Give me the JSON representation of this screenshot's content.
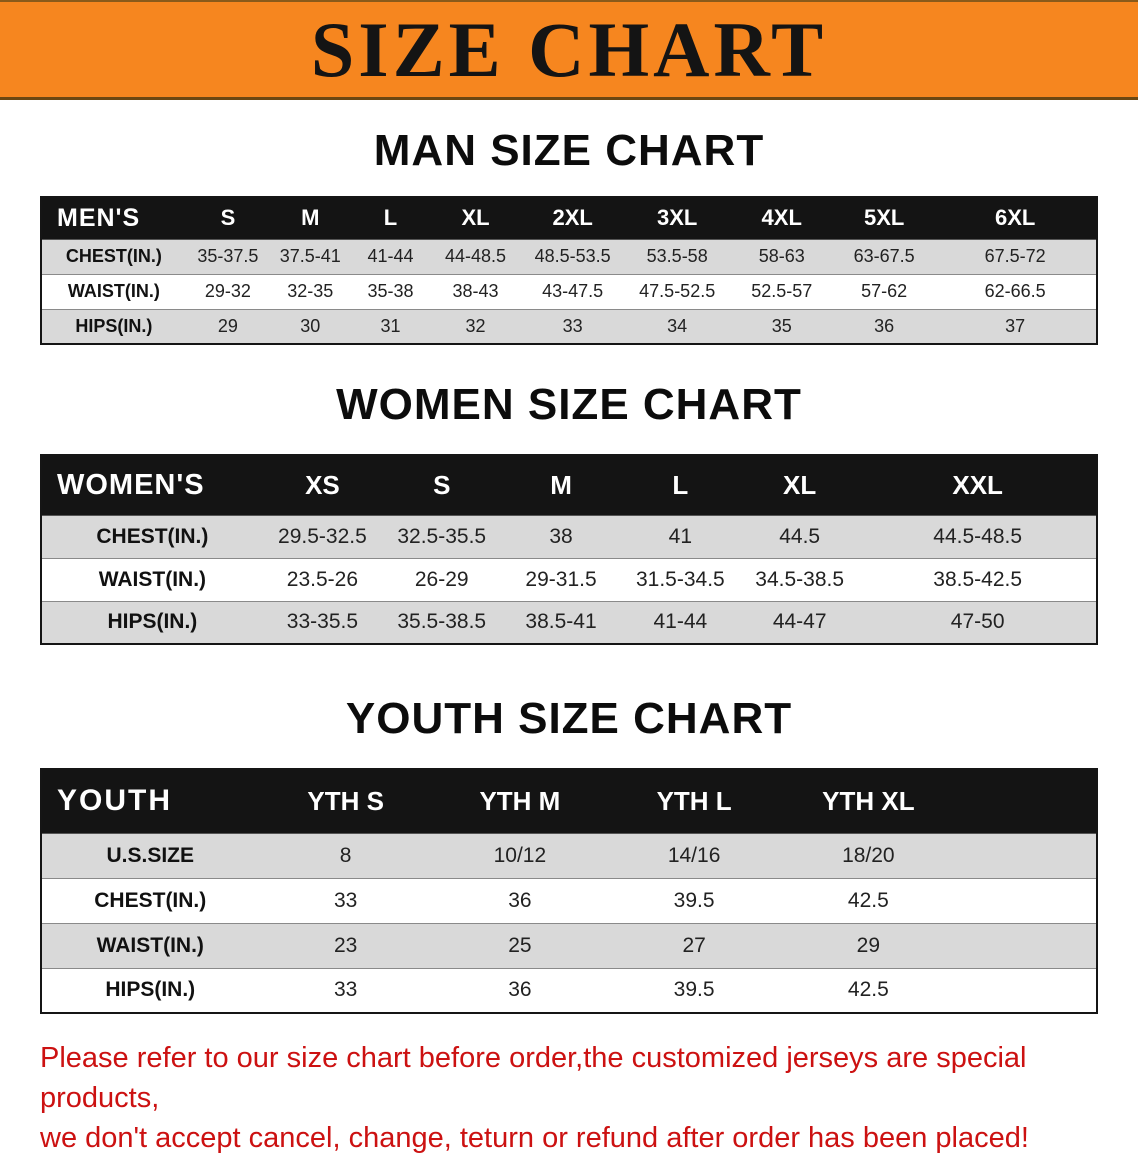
{
  "banner": {
    "title": "SIZE CHART"
  },
  "sections": {
    "men": {
      "heading": "MAN SIZE CHART"
    },
    "women": {
      "heading": "WOMEN SIZE CHART"
    },
    "youth": {
      "heading": "YOUTH SIZE CHART"
    }
  },
  "tables": {
    "men": {
      "header": [
        "MEN'S",
        "S",
        "M",
        "L",
        "XL",
        "2XL",
        "3XL",
        "4XL",
        "5XL",
        "6XL"
      ],
      "rows": [
        {
          "label": "CHEST(IN.)",
          "values": [
            "35-37.5",
            "37.5-41",
            "41-44",
            "44-48.5",
            "48.5-53.5",
            "53.5-58",
            "58-63",
            "63-67.5",
            "67.5-72"
          ]
        },
        {
          "label": "WAIST(IN.)",
          "values": [
            "29-32",
            "32-35",
            "35-38",
            "38-43",
            "43-47.5",
            "47.5-52.5",
            "52.5-57",
            "57-62",
            "62-66.5"
          ]
        },
        {
          "label": "HIPS(IN.)",
          "values": [
            "29",
            "30",
            "31",
            "32",
            "33",
            "34",
            "35",
            "36",
            "37"
          ]
        }
      ]
    },
    "women": {
      "header": [
        "WOMEN'S",
        "XS",
        "S",
        "M",
        "L",
        "XL",
        "XXL"
      ],
      "rows": [
        {
          "label": "CHEST(IN.)",
          "values": [
            "29.5-32.5",
            "32.5-35.5",
            "38",
            "41",
            "44.5",
            "44.5-48.5"
          ]
        },
        {
          "label": "WAIST(IN.)",
          "values": [
            "23.5-26",
            "26-29",
            "29-31.5",
            "31.5-34.5",
            "34.5-38.5",
            "38.5-42.5"
          ]
        },
        {
          "label": "HIPS(IN.)",
          "values": [
            "33-35.5",
            "35.5-38.5",
            "38.5-41",
            "41-44",
            "44-47",
            "47-50"
          ]
        }
      ]
    },
    "youth": {
      "header": [
        "YOUTH",
        "YTH S",
        "YTH M",
        "YTH L",
        "YTH XL"
      ],
      "rows": [
        {
          "label": "U.S.SIZE",
          "values": [
            "8",
            "10/12",
            "14/16",
            "18/20"
          ]
        },
        {
          "label": "CHEST(IN.)",
          "values": [
            "33",
            "36",
            "39.5",
            "42.5"
          ]
        },
        {
          "label": "WAIST(IN.)",
          "values": [
            "23",
            "25",
            "27",
            "29"
          ]
        },
        {
          "label": "HIPS(IN.)",
          "values": [
            "33",
            "36",
            "39.5",
            "42.5"
          ]
        }
      ]
    }
  },
  "footer": {
    "line1": "Please refer to our size chart before order,the customized jerseys are special products,",
    "line2": "we don't accept cancel, change, teturn or refund after order has been placed!"
  },
  "colors": {
    "banner_orange": "#f6861f",
    "table_header_black": "#141414",
    "row_gray": "#d9d9d9",
    "notice_red": "#cc1111"
  }
}
